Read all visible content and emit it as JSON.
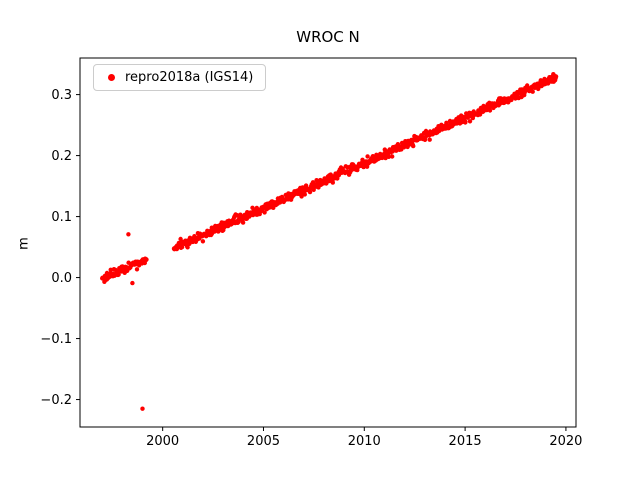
{
  "figure": {
    "background": "#ffffff",
    "axes_color": "#000000"
  },
  "chart_data": {
    "type": "scatter",
    "title": "WROC N",
    "xlabel": "",
    "ylabel": "m",
    "xlim": [
      1995.9,
      2020.5
    ],
    "ylim": [
      -0.245,
      0.36
    ],
    "xticks": [
      2000,
      2005,
      2010,
      2015,
      2020
    ],
    "xtick_labels": [
      "2000",
      "2005",
      "2010",
      "2015",
      "2020"
    ],
    "yticks": [
      -0.2,
      -0.1,
      0.0,
      0.1,
      0.2,
      0.3
    ],
    "ytick_labels": [
      "−0.2",
      "−0.1",
      "0.0",
      "0.1",
      "0.2",
      "0.3"
    ],
    "grid": false,
    "legend": {
      "position": "upper left",
      "entries": [
        {
          "label": "repro2018a (IGS14)",
          "color": "#ff0000",
          "marker": "circle"
        }
      ]
    },
    "series": [
      {
        "name": "repro2018a (IGS14)",
        "color": "#ff0000",
        "marker_size": 2.2,
        "points_per_year": 40,
        "noise_sigma_m": 0.0035,
        "segments": [
          {
            "x_start": 1997.0,
            "x_end": 1999.2,
            "y_start": -0.002,
            "y_end": 0.03
          },
          {
            "x_start": 2000.55,
            "x_end": 2019.5,
            "y_start": 0.048,
            "y_end": 0.328
          }
        ],
        "outliers": [
          {
            "x": 1998.3,
            "y": 0.071
          },
          {
            "x": 1998.5,
            "y": -0.009
          },
          {
            "x": 1999.0,
            "y": -0.215
          }
        ]
      }
    ]
  }
}
